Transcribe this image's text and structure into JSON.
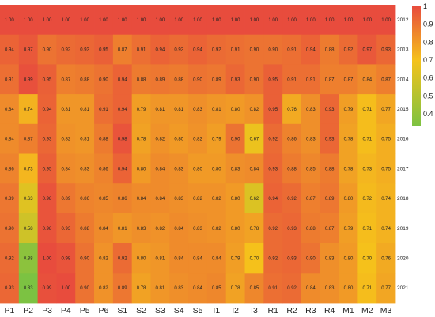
{
  "chart_data": {
    "type": "heatmap",
    "title": "",
    "xlabel": "",
    "ylabel": "",
    "columns": [
      "P1",
      "P2",
      "P3",
      "P4",
      "P5",
      "P6",
      "S1",
      "S2",
      "S3",
      "S4",
      "S5",
      "I1",
      "I2",
      "I3",
      "R1",
      "R2",
      "R3",
      "R4",
      "M1",
      "M2",
      "M3"
    ],
    "rows": [
      "2012",
      "2013",
      "2014",
      "2015",
      "2016",
      "2017",
      "2018",
      "2019",
      "2020",
      "2021"
    ],
    "values": [
      [
        "1.00",
        "1.00",
        "1.00",
        "1.00",
        "1.00",
        "1.00",
        "1.00",
        "1.00",
        "1.00",
        "1.00",
        "1.00",
        "1.00",
        "1.00",
        "1.00",
        "1.00",
        "1.00",
        "1.00",
        "1.00",
        "1.00",
        "1.00",
        "1.00"
      ],
      [
        "0.94",
        "0.97",
        "0.90",
        "0.92",
        "0.93",
        "0.95",
        "0.87",
        "0.91",
        "0.94",
        "0.92",
        "0.94",
        "0.92",
        "0.91",
        "0.90",
        "0.90",
        "0.91",
        "0.94",
        "0.88",
        "0.92",
        "0.97",
        "0.93"
      ],
      [
        "0.91",
        "0.99",
        "0.95",
        "0.87",
        "0.88",
        "0.90",
        "0.94",
        "0.88",
        "0.89",
        "0.88",
        "0.90",
        "0.89",
        "0.93",
        "0.90",
        "0.95",
        "0.91",
        "0.91",
        "0.87",
        "0.87",
        "0.84",
        "0.87"
      ],
      [
        "0.84",
        "0.74",
        "0.94",
        "0.81",
        "0.81",
        "0.91",
        "0.94",
        "0.79",
        "0.81",
        "0.81",
        "0.83",
        "0.81",
        "0.80",
        "0.82",
        "0.95",
        "0.76",
        "0.83",
        "0.93",
        "0.79",
        "0.71",
        "0.77"
      ],
      [
        "0.84",
        "0.87",
        "0.93",
        "0.82",
        "0.81",
        "0.88",
        "0.98",
        "0.78",
        "0.82",
        "0.80",
        "0.82",
        "0.79",
        "0.90",
        "0.67",
        "0.92",
        "0.86",
        "0.83",
        "0.93",
        "0.78",
        "0.71",
        "0.75"
      ],
      [
        "0.86",
        "0.73",
        "0.95",
        "0.84",
        "0.83",
        "0.86",
        "0.94",
        "0.80",
        "0.84",
        "0.83",
        "0.80",
        "0.80",
        "0.83",
        "0.84",
        "0.93",
        "0.88",
        "0.85",
        "0.88",
        "0.78",
        "0.73",
        "0.75"
      ],
      [
        "0.89",
        "0.63",
        "0.98",
        "0.89",
        "0.86",
        "0.85",
        "0.86",
        "0.84",
        "0.84",
        "0.83",
        "0.82",
        "0.82",
        "0.80",
        "0.62",
        "0.94",
        "0.92",
        "0.87",
        "0.89",
        "0.80",
        "0.72",
        "0.74"
      ],
      [
        "0.90",
        "0.58",
        "0.98",
        "0.93",
        "0.88",
        "0.84",
        "0.81",
        "0.83",
        "0.82",
        "0.84",
        "0.83",
        "0.82",
        "0.80",
        "0.78",
        "0.92",
        "0.93",
        "0.88",
        "0.87",
        "0.79",
        "0.71",
        "0.74"
      ],
      [
        "0.92",
        "0.38",
        "1.00",
        "0.98",
        "0.90",
        "0.82",
        "0.92",
        "0.80",
        "0.81",
        "0.84",
        "0.84",
        "0.84",
        "0.79",
        "0.70",
        "0.92",
        "0.93",
        "0.90",
        "0.83",
        "0.80",
        "0.70",
        "0.76"
      ],
      [
        "0.93",
        "0.33",
        "0.99",
        "1.00",
        "0.90",
        "0.82",
        "0.89",
        "0.78",
        "0.81",
        "0.83",
        "0.84",
        "0.85",
        "0.78",
        "0.85",
        "0.91",
        "0.92",
        "0.84",
        "0.83",
        "0.80",
        "0.71",
        "0.77"
      ]
    ],
    "colorbar": {
      "min": 0.33,
      "max": 1.0,
      "ticks": [
        "1",
        "0.9",
        "0.8",
        "0.7",
        "0.6",
        "0.5",
        "0.4"
      ],
      "colors": [
        "#7cc242",
        "#f5c21b",
        "#e84c3d"
      ]
    },
    "legend": "right",
    "grid": false
  }
}
